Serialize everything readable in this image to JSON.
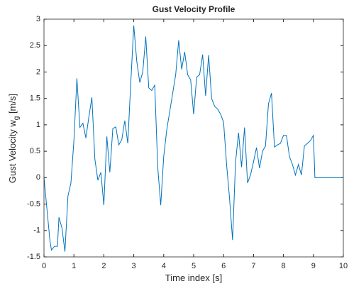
{
  "chart_data": {
    "type": "line",
    "title": "Gust Velocity Profile",
    "xlabel": "Time index [s]",
    "ylabel": [
      "Gust Velocity  w",
      "g",
      " [m/s]"
    ],
    "x": [
      0,
      0.1,
      0.2,
      0.25,
      0.35,
      0.45,
      0.5,
      0.6,
      0.7,
      0.8,
      0.9,
      1.0,
      1.1,
      1.2,
      1.3,
      1.4,
      1.5,
      1.6,
      1.7,
      1.8,
      1.9,
      2.0,
      2.1,
      2.2,
      2.3,
      2.4,
      2.5,
      2.6,
      2.7,
      2.8,
      2.9,
      3.0,
      3.1,
      3.2,
      3.3,
      3.4,
      3.5,
      3.6,
      3.7,
      3.8,
      3.9,
      4.0,
      4.1,
      4.2,
      4.3,
      4.4,
      4.5,
      4.6,
      4.7,
      4.8,
      4.9,
      5.0,
      5.1,
      5.2,
      5.3,
      5.4,
      5.5,
      5.6,
      5.7,
      5.8,
      5.9,
      6.0,
      6.1,
      6.2,
      6.3,
      6.4,
      6.5,
      6.6,
      6.7,
      6.8,
      6.9,
      7.0,
      7.1,
      7.2,
      7.3,
      7.4,
      7.5,
      7.6,
      7.7,
      7.8,
      7.9,
      8.0,
      8.1,
      8.2,
      8.3,
      8.4,
      8.5,
      8.6,
      8.7,
      8.8,
      8.9,
      9.0,
      9.05,
      10
    ],
    "series": [
      {
        "name": "w_g",
        "color": "#0072bd",
        "values": [
          0,
          -0.6,
          -1.2,
          -1.37,
          -1.3,
          -1.3,
          -0.75,
          -0.95,
          -1.4,
          -0.35,
          -0.1,
          0.7,
          1.88,
          0.95,
          1.03,
          0.75,
          1.15,
          1.52,
          0.35,
          -0.05,
          0.1,
          -0.52,
          0.78,
          0.1,
          0.93,
          0.96,
          0.62,
          0.72,
          1.08,
          0.65,
          1.8,
          2.88,
          2.2,
          1.8,
          2.0,
          2.67,
          1.7,
          1.65,
          1.75,
          0.2,
          -0.52,
          0.4,
          0.9,
          1.25,
          1.6,
          1.95,
          2.6,
          2.05,
          2.38,
          1.95,
          1.85,
          1.2,
          1.9,
          1.95,
          2.33,
          1.55,
          2.32,
          1.5,
          1.35,
          1.3,
          1.2,
          1.05,
          0.25,
          -0.4,
          -1.18,
          0.3,
          0.85,
          0.2,
          0.95,
          -0.1,
          0.05,
          0.3,
          0.57,
          0.18,
          0.5,
          0.6,
          1.4,
          1.6,
          0.58,
          0.62,
          0.65,
          0.8,
          0.8,
          0.4,
          0.25,
          0.05,
          0.25,
          0.05,
          0.6,
          0.65,
          0.7,
          0.8,
          0,
          0
        ]
      }
    ],
    "xlim": [
      0,
      10
    ],
    "xticks": [
      0,
      1,
      2,
      3,
      4,
      5,
      6,
      7,
      8,
      9,
      10
    ],
    "ylim": [
      -1.5,
      3
    ],
    "yticks": [
      -1.5,
      -1,
      -0.5,
      0,
      0.5,
      1,
      1.5,
      2,
      2.5,
      3
    ]
  }
}
